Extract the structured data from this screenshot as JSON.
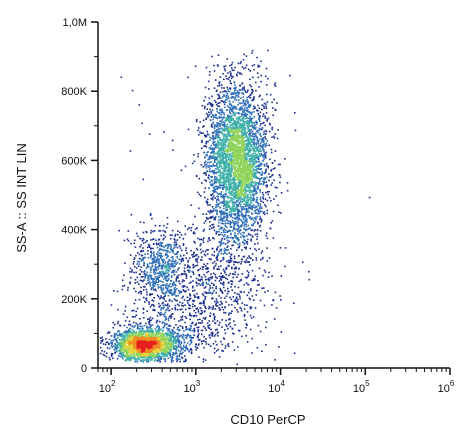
{
  "chart_data": {
    "type": "scatter",
    "xlabel": "CD10 PerCP",
    "ylabel": "SS-A :: SS INT LIN",
    "x_scale": "log",
    "xlim": [
      70,
      1000000
    ],
    "ylim": [
      0,
      1000000
    ],
    "x_ticks": [
      {
        "value": 100,
        "base": "10",
        "exp": "2"
      },
      {
        "value": 1000,
        "base": "10",
        "exp": "3"
      },
      {
        "value": 10000,
        "base": "10",
        "exp": "4"
      },
      {
        "value": 100000,
        "base": "10",
        "exp": "5"
      },
      {
        "value": 1000000,
        "base": "10",
        "exp": "6"
      }
    ],
    "y_ticks": [
      {
        "value": 0,
        "label": "0"
      },
      {
        "value": 200000,
        "label": "200K"
      },
      {
        "value": 400000,
        "label": "400K"
      },
      {
        "value": 600000,
        "label": "600K"
      },
      {
        "value": 800000,
        "label": "800K"
      },
      {
        "value": 1000000,
        "label": "1,0M"
      }
    ],
    "density_colors": [
      "#1c2f8f",
      "#2f6fb8",
      "#3fb0a8",
      "#8fd35a",
      "#e8d23a",
      "#f08a24",
      "#e5201e"
    ],
    "populations": [
      {
        "x_center": 250,
        "y_center": 70000,
        "log_sd_x": 0.2,
        "sd_y": 22000,
        "count": 2000
      },
      {
        "x_center": 380,
        "y_center": 290000,
        "log_sd_x": 0.17,
        "sd_y": 55000,
        "count": 650
      },
      {
        "x_center": 3000,
        "y_center": 600000,
        "log_sd_x": 0.18,
        "sd_y": 110000,
        "count": 3600
      },
      {
        "x_center": 1800,
        "y_center": 250000,
        "log_sd_x": 0.3,
        "sd_y": 90000,
        "count": 650
      },
      {
        "x_center": 600,
        "y_center": 130000,
        "log_sd_x": 0.35,
        "sd_y": 60000,
        "count": 350
      }
    ]
  }
}
